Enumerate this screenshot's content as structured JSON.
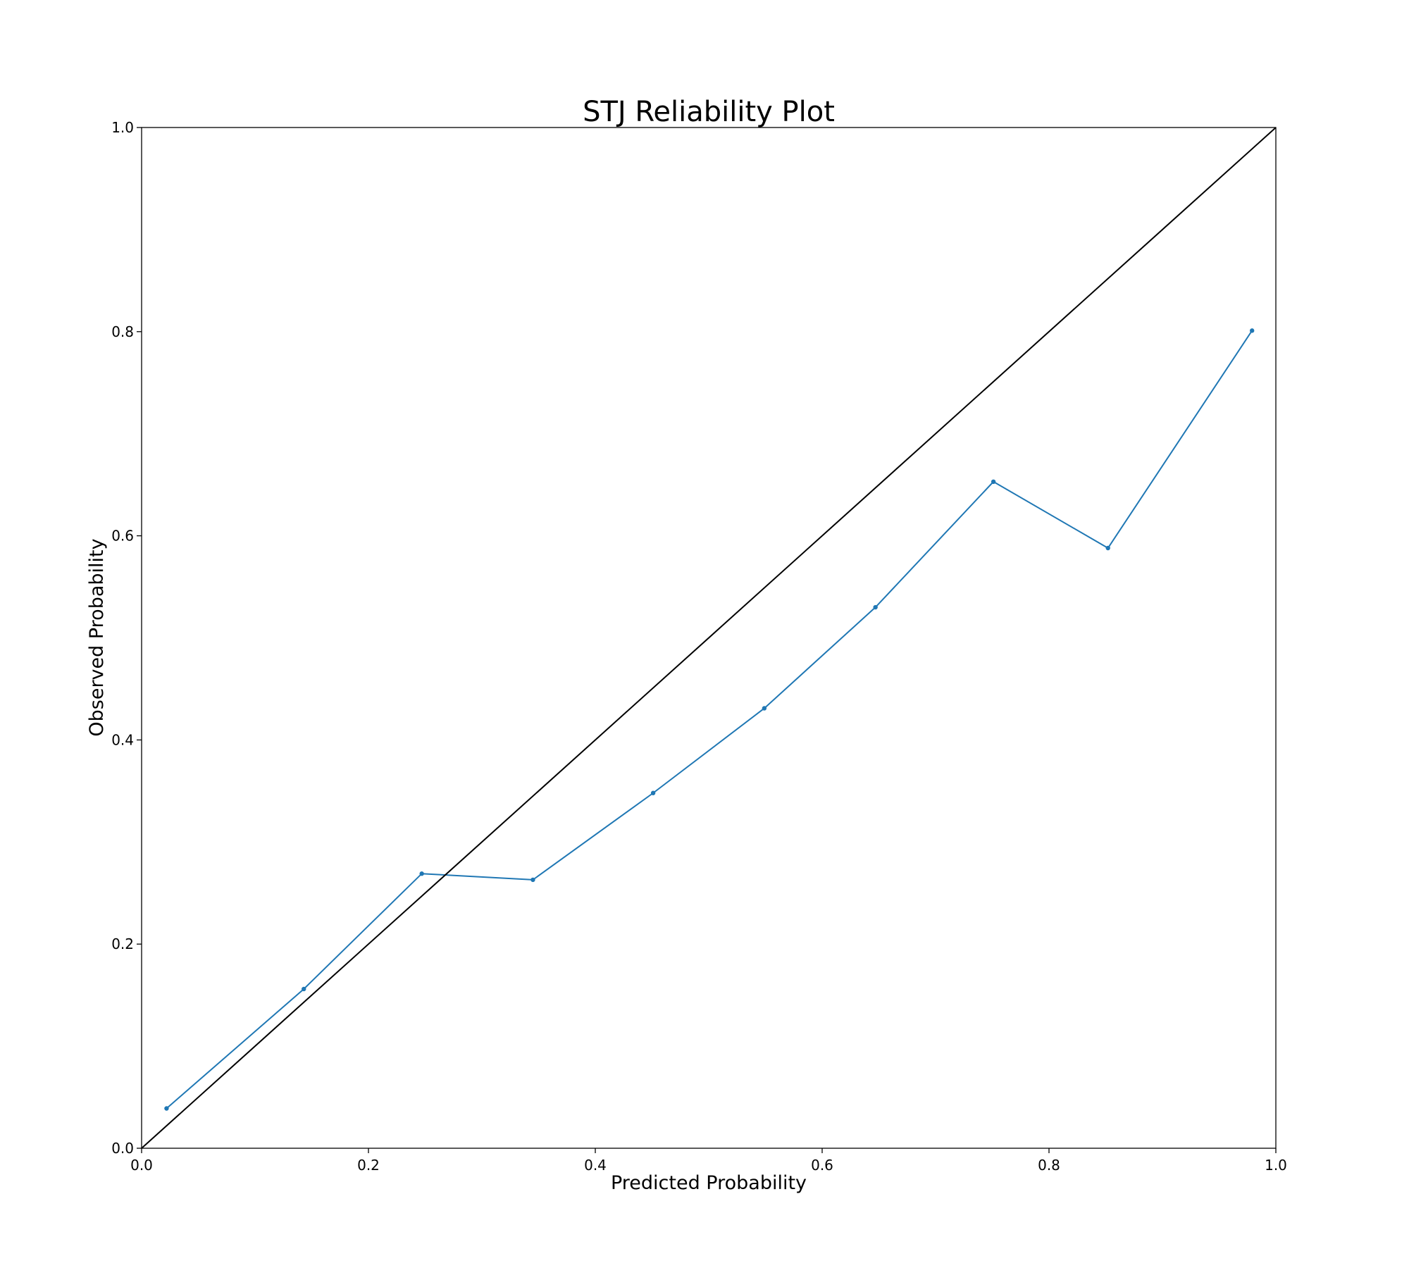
{
  "chart_data": {
    "type": "line",
    "title": "STJ Reliability Plot",
    "xlabel": "Predicted Probability",
    "ylabel": "Observed Probability",
    "xlim": [
      0.0,
      1.0
    ],
    "ylim": [
      0.0,
      1.0
    ],
    "x_ticks": [
      "0.0",
      "0.2",
      "0.4",
      "0.6",
      "0.8",
      "1.0"
    ],
    "y_ticks": [
      "0.0",
      "0.2",
      "0.4",
      "0.6",
      "0.8",
      "1.0"
    ],
    "grid": false,
    "legend": "none",
    "series": [
      {
        "color": "#1f77b4",
        "marker": "point",
        "x": [
          0.022,
          0.143,
          0.247,
          0.345,
          0.451,
          0.549,
          0.647,
          0.751,
          0.852,
          0.979
        ],
        "y": [
          0.039,
          0.156,
          0.269,
          0.263,
          0.348,
          0.431,
          0.53,
          0.653,
          0.588,
          0.801
        ]
      },
      {
        "color": "#000000",
        "marker": "none",
        "x": [
          0.0,
          1.0
        ],
        "y": [
          0.0,
          1.0
        ]
      }
    ]
  }
}
